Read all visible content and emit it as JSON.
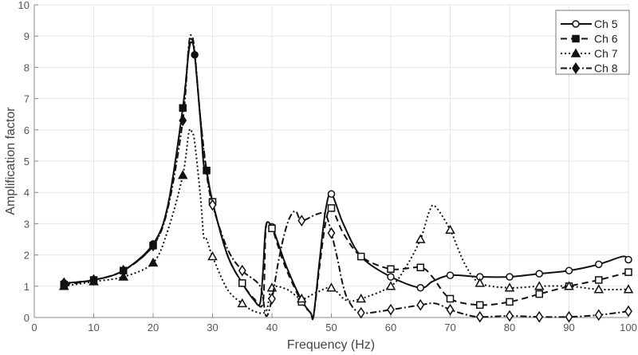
{
  "chart_data": {
    "type": "line",
    "title": "",
    "xlabel": "Frequency (Hz)",
    "ylabel": "Amplification factor",
    "xlim": [
      0,
      100
    ],
    "ylim": [
      0,
      10
    ],
    "xticks": [
      0,
      10,
      20,
      30,
      40,
      50,
      60,
      70,
      80,
      90,
      100
    ],
    "yticks": [
      0,
      1,
      2,
      3,
      4,
      5,
      6,
      7,
      8,
      9,
      10
    ],
    "grid": true,
    "legend_position": "top-right",
    "series": [
      {
        "name": "Ch 5",
        "line_style": "solid",
        "marker": "circle",
        "x": [
          5,
          10,
          15,
          20,
          22.5,
          25,
          26,
          26.5,
          27,
          28,
          28.5,
          29,
          30,
          32.5,
          35,
          37,
          38,
          38.5,
          39,
          40,
          41,
          42.5,
          45,
          46.5,
          47,
          48,
          49,
          50,
          52,
          55,
          60,
          65,
          67,
          70,
          75,
          80,
          85,
          90,
          95,
          99,
          100
        ],
        "y": [
          1.1,
          1.2,
          1.5,
          2.35,
          3.6,
          6.7,
          8.5,
          8.8,
          8.4,
          6.2,
          4.9,
          4.7,
          3.7,
          2.0,
          1.1,
          0.55,
          0.45,
          1.5,
          2.95,
          2.9,
          2.4,
          1.6,
          0.55,
          0.15,
          0.05,
          1.8,
          3.4,
          3.95,
          3.0,
          1.95,
          1.3,
          0.95,
          1.15,
          1.35,
          1.3,
          1.3,
          1.4,
          1.5,
          1.7,
          1.95,
          1.85
        ],
        "marker_x": [
          5,
          10,
          15,
          20,
          25,
          27,
          29,
          30,
          35,
          40,
          45,
          50,
          55,
          60,
          65,
          70,
          75,
          80,
          85,
          90,
          95,
          100
        ]
      },
      {
        "name": "Ch 6",
        "line_style": "dashed",
        "marker": "square",
        "x": [
          5,
          10,
          15,
          20,
          22.5,
          25,
          26,
          26.5,
          27,
          28,
          29,
          30,
          32.5,
          35,
          37,
          38.5,
          39,
          40,
          41,
          42.5,
          45,
          46.5,
          47,
          48,
          49,
          50,
          52,
          55,
          60,
          65,
          67,
          70,
          75,
          80,
          85,
          90,
          95,
          100
        ],
        "y": [
          1.05,
          1.2,
          1.5,
          2.3,
          3.6,
          6.7,
          8.6,
          8.9,
          8.4,
          6.3,
          4.7,
          3.7,
          2.0,
          1.1,
          0.6,
          0.5,
          2.9,
          2.85,
          2.3,
          1.5,
          0.5,
          0.15,
          0.05,
          1.6,
          3.0,
          3.5,
          2.7,
          1.95,
          1.55,
          1.6,
          1.3,
          0.6,
          0.4,
          0.5,
          0.75,
          1.0,
          1.2,
          1.45
        ],
        "marker_x": [
          5,
          10,
          15,
          20,
          25,
          29,
          30,
          35,
          40,
          45,
          50,
          55,
          60,
          65,
          70,
          75,
          80,
          85,
          90,
          95,
          100
        ]
      },
      {
        "name": "Ch 7",
        "line_style": "dotted",
        "marker": "triangle",
        "x": [
          5,
          10,
          15,
          20,
          22.5,
          25,
          26,
          26.5,
          27,
          28,
          28.5,
          29,
          30,
          32.5,
          35,
          37,
          39,
          40,
          42.5,
          45,
          47.5,
          50,
          52.5,
          55,
          60,
          62.5,
          65,
          66.5,
          67.5,
          70,
          72.5,
          75,
          80,
          85,
          90,
          95,
          100
        ],
        "y": [
          1.0,
          1.15,
          1.3,
          1.75,
          2.8,
          4.55,
          5.9,
          5.95,
          5.6,
          3.8,
          2.6,
          2.5,
          1.95,
          0.9,
          0.45,
          0.2,
          0.2,
          0.95,
          0.9,
          0.6,
          0.8,
          0.95,
          0.55,
          0.6,
          1.0,
          1.6,
          2.5,
          3.4,
          3.55,
          2.8,
          1.7,
          1.1,
          0.95,
          1.0,
          1.0,
          0.9,
          0.9
        ],
        "marker_x": [
          5,
          10,
          15,
          20,
          25,
          30,
          35,
          40,
          45,
          50,
          55,
          60,
          65,
          70,
          75,
          80,
          85,
          90,
          95,
          100
        ]
      },
      {
        "name": "Ch 8",
        "line_style": "dash-dot",
        "marker": "diamond",
        "x": [
          5,
          10,
          15,
          20,
          22.5,
          25,
          26,
          26.5,
          27,
          28,
          29,
          30,
          32.5,
          35,
          38,
          39,
          40,
          41,
          42,
          43,
          44,
          45,
          47.5,
          49,
          50,
          51,
          52,
          53,
          55,
          60,
          65,
          67.5,
          70,
          72.5,
          75,
          80,
          85,
          90,
          95,
          100
        ],
        "y": [
          1.1,
          1.2,
          1.5,
          2.3,
          3.5,
          6.3,
          8.7,
          9.0,
          8.5,
          6.3,
          4.6,
          3.6,
          2.2,
          1.5,
          1.0,
          0.05,
          0.6,
          1.7,
          2.6,
          3.2,
          3.4,
          3.1,
          3.3,
          3.3,
          2.7,
          1.9,
          1.0,
          0.5,
          0.15,
          0.25,
          0.4,
          0.45,
          0.25,
          0.1,
          0.02,
          0.05,
          0.02,
          0.02,
          0.08,
          0.2
        ],
        "marker_x": [
          5,
          10,
          15,
          20,
          25,
          30,
          35,
          40,
          45,
          50,
          55,
          60,
          65,
          70,
          75,
          80,
          85,
          90,
          95,
          100
        ]
      }
    ]
  }
}
